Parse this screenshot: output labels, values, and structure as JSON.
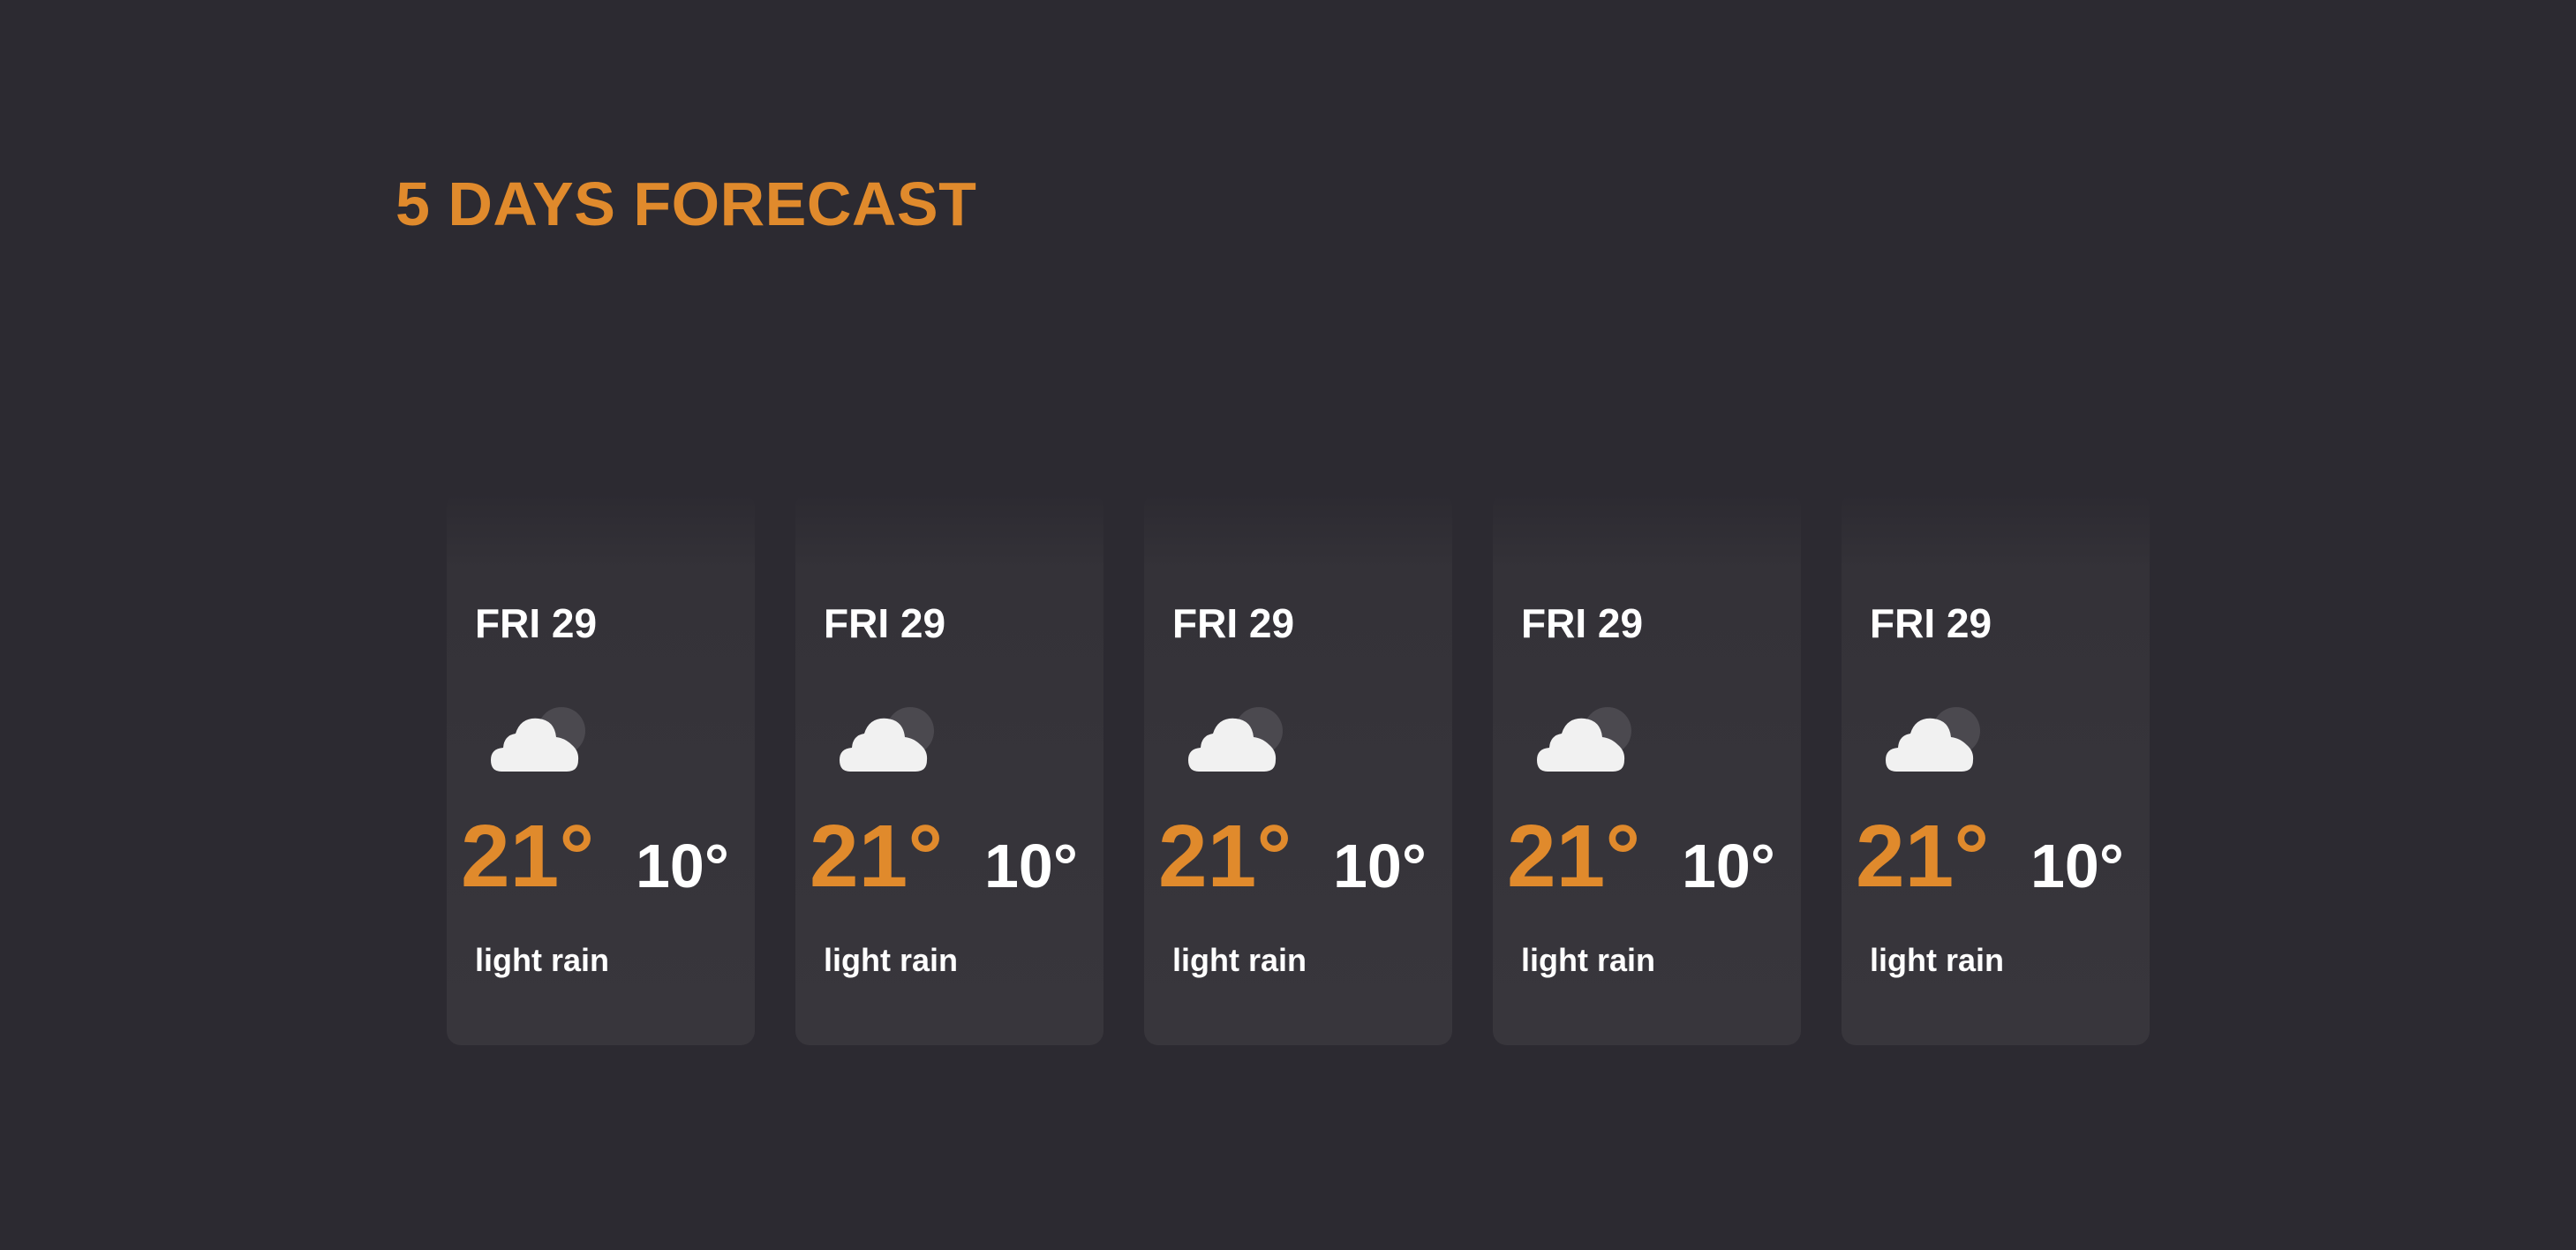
{
  "title": "5 DAYS FORECAST",
  "colors": {
    "background": "#2c2a31",
    "accent": "#e08a2c",
    "card": "#38363c",
    "text": "#ffffff"
  },
  "days": [
    {
      "day": "FRI 29",
      "icon": "cloud-moon-icon",
      "high": "21°",
      "low": "10°",
      "description": "light rain"
    },
    {
      "day": "FRI 29",
      "icon": "cloud-moon-icon",
      "high": "21°",
      "low": "10°",
      "description": "light rain"
    },
    {
      "day": "FRI 29",
      "icon": "cloud-moon-icon",
      "high": "21°",
      "low": "10°",
      "description": "light rain"
    },
    {
      "day": "FRI 29",
      "icon": "cloud-moon-icon",
      "high": "21°",
      "low": "10°",
      "description": "light rain"
    },
    {
      "day": "FRI 29",
      "icon": "cloud-moon-icon",
      "high": "21°",
      "low": "10°",
      "description": "light rain"
    }
  ]
}
